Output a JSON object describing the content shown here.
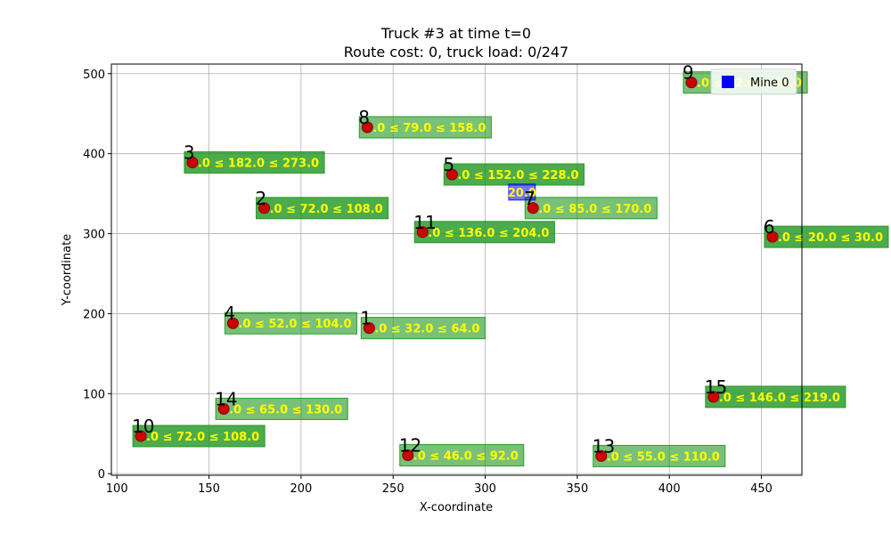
{
  "colors": {
    "node": "#cc0000",
    "node_edge": "#7f0000",
    "label_box": "#1f961f",
    "label_text": "#ffff00",
    "mine": "#0000ff",
    "grid": "#b0b0b0"
  },
  "chart_data": {
    "type": "scatter",
    "title": "Truck #3 at time t=0",
    "subtitle": "Route cost: 0, truck load: 0/247",
    "xlabel": "X-coordinate",
    "ylabel": "Y-coordinate",
    "xlim": [
      97,
      472
    ],
    "ylim": [
      -2,
      512
    ],
    "xticks": [
      100,
      150,
      200,
      250,
      300,
      350,
      400,
      450
    ],
    "yticks": [
      0,
      100,
      200,
      300,
      400,
      500
    ],
    "grid": true,
    "legend": {
      "position": "top-right",
      "entries": [
        {
          "name": "Mine 0",
          "marker": "square",
          "color": "#0000ff"
        }
      ]
    },
    "mine": {
      "x": 320,
      "y": 352,
      "label": "20.0"
    },
    "points": [
      {
        "id": "1",
        "x": 237,
        "y": 182,
        "label": "0.0 ≤ 32.0 ≤ 64.0",
        "box_alpha": 0.6
      },
      {
        "id": "2",
        "x": 180,
        "y": 332,
        "label": "0.0 ≤ 72.0 ≤ 108.0",
        "box_alpha": 0.8
      },
      {
        "id": "3",
        "x": 141,
        "y": 389,
        "label": "0.0 ≤ 182.0 ≤ 273.0",
        "box_alpha": 0.8
      },
      {
        "id": "4",
        "x": 163,
        "y": 188,
        "label": "0.0 ≤ 52.0 ≤ 104.0",
        "box_alpha": 0.6
      },
      {
        "id": "5",
        "x": 282,
        "y": 374,
        "label": "0.0 ≤ 152.0 ≤ 228.0",
        "box_alpha": 0.8
      },
      {
        "id": "6",
        "x": 456,
        "y": 296,
        "label": "0.0 ≤ 20.0 ≤ 30.0",
        "box_alpha": 0.8
      },
      {
        "id": "7",
        "x": 326,
        "y": 332,
        "label": "0.0 ≤ 85.0 ≤ 170.0",
        "box_alpha": 0.6
      },
      {
        "id": "8",
        "x": 236,
        "y": 433,
        "label": "0.0 ≤ 79.0 ≤ 158.0",
        "box_alpha": 0.6
      },
      {
        "id": "9",
        "x": 412,
        "y": 489,
        "label": "0.0 ≤ 22.0 ≤ 44.0",
        "box_alpha": 0.6
      },
      {
        "id": "10",
        "x": 113,
        "y": 47,
        "label": "0.0 ≤ 72.0 ≤ 108.0",
        "box_alpha": 0.8
      },
      {
        "id": "11",
        "x": 266,
        "y": 302,
        "label": "0.0 ≤ 136.0 ≤ 204.0",
        "box_alpha": 0.8
      },
      {
        "id": "12",
        "x": 258,
        "y": 23,
        "label": "0.0 ≤ 46.0 ≤ 92.0",
        "box_alpha": 0.6
      },
      {
        "id": "13",
        "x": 363,
        "y": 22,
        "label": "0.0 ≤ 55.0 ≤ 110.0",
        "box_alpha": 0.6
      },
      {
        "id": "14",
        "x": 158,
        "y": 81,
        "label": "0.0 ≤ 65.0 ≤ 130.0",
        "box_alpha": 0.6
      },
      {
        "id": "15",
        "x": 424,
        "y": 96,
        "label": "0.0 ≤ 146.0 ≤ 219.0",
        "box_alpha": 0.8
      }
    ]
  }
}
